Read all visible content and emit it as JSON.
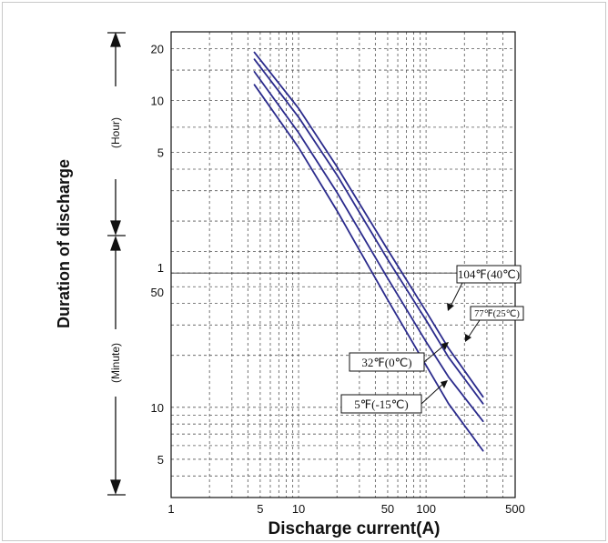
{
  "chart_data": {
    "type": "line",
    "title": "",
    "xlabel": "Discharge current(A)",
    "ylabel": "Duration of discharge",
    "x_scale": "log",
    "y_scale": "log",
    "xlim": [
      1,
      500
    ],
    "x_ticks": [
      "1",
      "5",
      "10",
      "50",
      "100",
      "500"
    ],
    "y_sections": [
      {
        "unit": "(Hour)",
        "ticks": [
          "20",
          "10",
          "5"
        ],
        "range_hours": [
          1,
          25
        ]
      },
      {
        "unit": "(Minute)",
        "ticks": [
          "1",
          "50",
          "10",
          "5"
        ],
        "range_minutes": [
          3,
          60
        ]
      }
    ],
    "y_units": "minutes",
    "ylim": [
      3,
      1500
    ],
    "grid": true,
    "series": [
      {
        "name": "104℉(40℃)",
        "color": "#2b2b8c",
        "x": [
          4.5,
          10,
          20,
          50,
          100,
          150,
          280
        ],
        "y": [
          1140,
          540,
          248,
          82,
          36,
          22,
          11.5
        ]
      },
      {
        "name": "77℉(25℃)",
        "color": "#2b2b8c",
        "x": [
          4.5,
          10,
          20,
          50,
          100,
          150,
          280
        ],
        "y": [
          1040,
          480,
          222,
          72,
          32,
          19.5,
          10.5
        ]
      },
      {
        "name": "32℉(0℃)",
        "color": "#2b2b8c",
        "x": [
          4.5,
          10,
          20,
          50,
          100,
          150,
          280
        ],
        "y": [
          880,
          390,
          176,
          56,
          24,
          15,
          8.3
        ]
      },
      {
        "name": "5℉(-15℃)",
        "color": "#2b2b8c",
        "x": [
          4.5,
          10,
          20,
          50,
          100,
          150,
          280
        ],
        "y": [
          740,
          320,
          138,
          42,
          17.5,
          10.5,
          5.6
        ]
      }
    ]
  }
}
